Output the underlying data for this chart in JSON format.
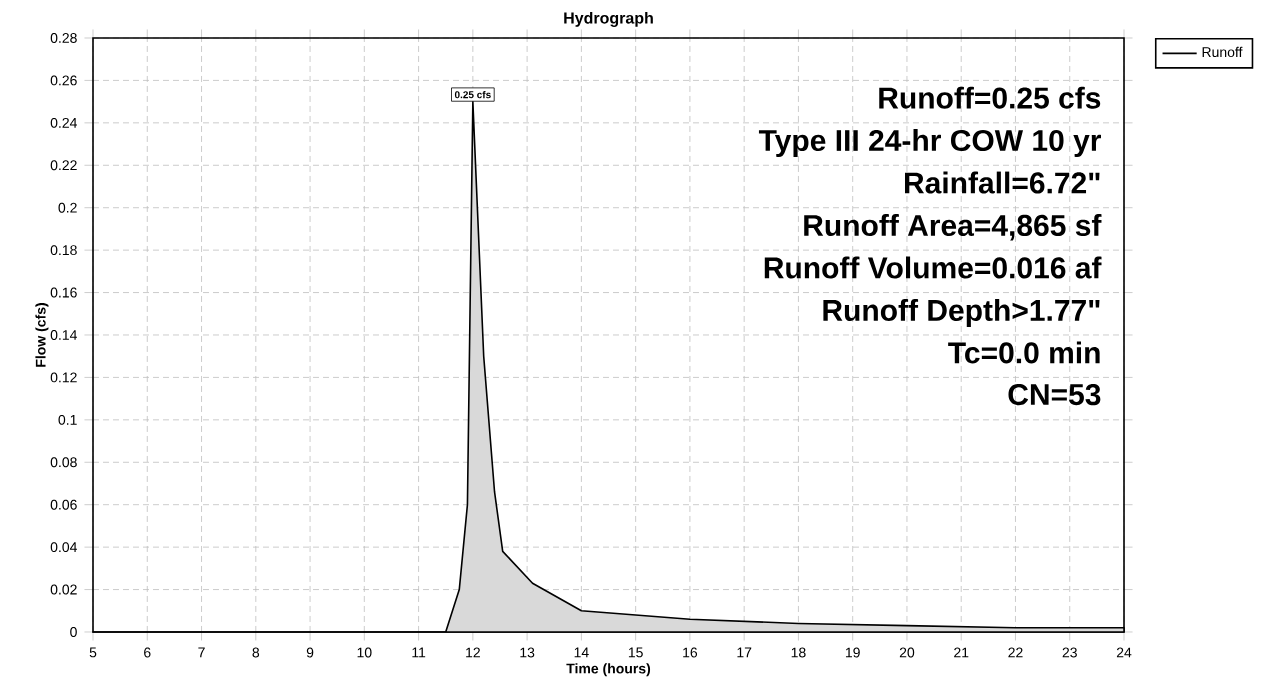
{
  "chart_data": {
    "type": "area",
    "title": "Hydrograph",
    "xlabel": "Time  (hours)",
    "ylabel": "Flow  (cfs)",
    "x": [
      5,
      11.5,
      11.75,
      11.9,
      12.0,
      12.2,
      12.4,
      12.55,
      13.1,
      14,
      16,
      18,
      20,
      22,
      24
    ],
    "series": [
      {
        "name": "Runoff",
        "color": "#d9d9d9",
        "values": [
          0,
          0,
          0.02,
          0.06,
          0.25,
          0.13,
          0.066,
          0.038,
          0.023,
          0.01,
          0.006,
          0.004,
          0.003,
          0.002,
          0.002
        ]
      }
    ],
    "xlim": [
      5,
      24
    ],
    "ylim": [
      0,
      0.28
    ],
    "xticks": [
      5,
      6,
      7,
      8,
      9,
      10,
      11,
      12,
      13,
      14,
      15,
      16,
      17,
      18,
      19,
      20,
      21,
      22,
      23,
      24
    ],
    "yticks": [
      0,
      0.02,
      0.04,
      0.06,
      0.08,
      0.1,
      0.12,
      0.14,
      0.16,
      0.18,
      0.2,
      0.22,
      0.24,
      0.26,
      0.28
    ],
    "annotations": [
      {
        "text": "0.25 cfs",
        "x": 12.0,
        "y": 0.25
      },
      "Runoff=0.25 cfs",
      "Type III 24-hr COW 10 yr",
      "Rainfall=6.72\"",
      "Runoff Area=4,865 sf",
      "Runoff Volume=0.016 af",
      "Runoff Depth>1.77\"",
      "Tc=0.0 min",
      "CN=53"
    ],
    "grid": true,
    "legend": "top right",
    "marker": "none",
    "line_style": "solid"
  }
}
